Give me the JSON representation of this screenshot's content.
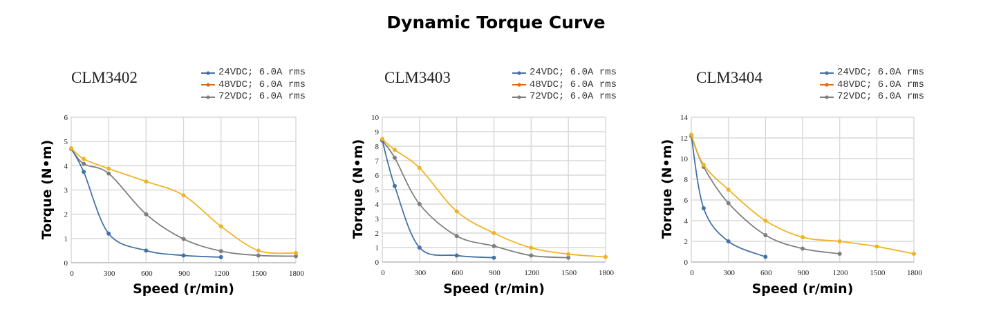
{
  "title": "Dynamic Torque Curve",
  "colors": {
    "24V": "#4472a8",
    "48V_legend": "#e06c1a",
    "48V_line": "#f0b323",
    "72V": "#7f7f7f",
    "grid": "#d9d9d9"
  },
  "chart_data": [
    {
      "type": "line",
      "title": "CLM3402",
      "xlabel": "Speed (r/min)",
      "ylabel": "Torque (N•m)",
      "xlim": [
        0,
        1800
      ],
      "ylim": [
        0,
        6
      ],
      "xticks": [
        "0",
        "300",
        "600",
        "900",
        "1200",
        "1500",
        "1800"
      ],
      "yticks": [
        "0",
        "1",
        "2",
        "3",
        "4",
        "5",
        "6"
      ],
      "grid": true,
      "legend": "top-right",
      "series": [
        {
          "name": "24VDC; 6.0A rms",
          "x": [
            0,
            100,
            300,
            600,
            900,
            1200
          ],
          "y": [
            4.7,
            3.75,
            1.2,
            0.5,
            0.3,
            0.23
          ]
        },
        {
          "name": "48VDC; 6.0A rms",
          "x": [
            0,
            100,
            300,
            600,
            900,
            1200,
            1500,
            1800
          ],
          "y": [
            4.72,
            4.28,
            3.88,
            3.35,
            2.78,
            1.5,
            0.5,
            0.4
          ]
        },
        {
          "name": "72VDC; 6.0A rms",
          "x": [
            0,
            100,
            300,
            600,
            900,
            1200,
            1500,
            1800
          ],
          "y": [
            4.7,
            4.08,
            3.68,
            2.0,
            0.98,
            0.48,
            0.3,
            0.27
          ]
        }
      ]
    },
    {
      "type": "line",
      "title": "CLM3403",
      "xlabel": "Speed (r/min)",
      "ylabel": "Torque (N•m)",
      "xlim": [
        0,
        1800
      ],
      "ylim": [
        0,
        10
      ],
      "xticks": [
        "0",
        "300",
        "600",
        "900",
        "1200",
        "1500",
        "1800"
      ],
      "yticks": [
        "0",
        "1",
        "2",
        "3",
        "4",
        "5",
        "6",
        "7",
        "8",
        "9",
        "10"
      ],
      "grid": true,
      "legend": "top-right",
      "series": [
        {
          "name": "24VDC; 6.0A rms",
          "x": [
            0,
            100,
            300,
            600,
            900
          ],
          "y": [
            8.4,
            5.25,
            1.0,
            0.45,
            0.3
          ]
        },
        {
          "name": "48VDC; 6.0A rms",
          "x": [
            0,
            100,
            300,
            600,
            900,
            1200,
            1500,
            1800
          ],
          "y": [
            8.5,
            7.75,
            6.5,
            3.5,
            2.0,
            0.98,
            0.55,
            0.35
          ]
        },
        {
          "name": "72VDC; 6.0A rms",
          "x": [
            0,
            100,
            300,
            600,
            900,
            1200,
            1500
          ],
          "y": [
            8.4,
            7.2,
            4.0,
            1.8,
            1.1,
            0.45,
            0.3
          ]
        }
      ]
    },
    {
      "type": "line",
      "title": "CLM3404",
      "xlabel": "Speed (r/min)",
      "ylabel": "Torque (N•m)",
      "xlim": [
        0,
        1800
      ],
      "ylim": [
        0,
        14
      ],
      "xticks": [
        "0",
        "300",
        "600",
        "900",
        "1200",
        "1500",
        "1800"
      ],
      "yticks": [
        "0",
        "2",
        "4",
        "6",
        "8",
        "10",
        "12",
        "14"
      ],
      "grid": true,
      "legend": "top-right",
      "series": [
        {
          "name": "24VDC; 6.0A rms",
          "x": [
            0,
            100,
            300,
            600
          ],
          "y": [
            12.2,
            5.2,
            2.0,
            0.5
          ]
        },
        {
          "name": "48VDC; 6.0A rms",
          "x": [
            0,
            100,
            300,
            600,
            900,
            1200,
            1500,
            1800
          ],
          "y": [
            12.3,
            9.4,
            7.0,
            4.0,
            2.4,
            2.0,
            1.5,
            0.8
          ]
        },
        {
          "name": "72VDC; 6.0A rms",
          "x": [
            0,
            100,
            300,
            600,
            900,
            1200
          ],
          "y": [
            12.2,
            9.2,
            5.7,
            2.6,
            1.3,
            0.8
          ]
        }
      ]
    }
  ]
}
